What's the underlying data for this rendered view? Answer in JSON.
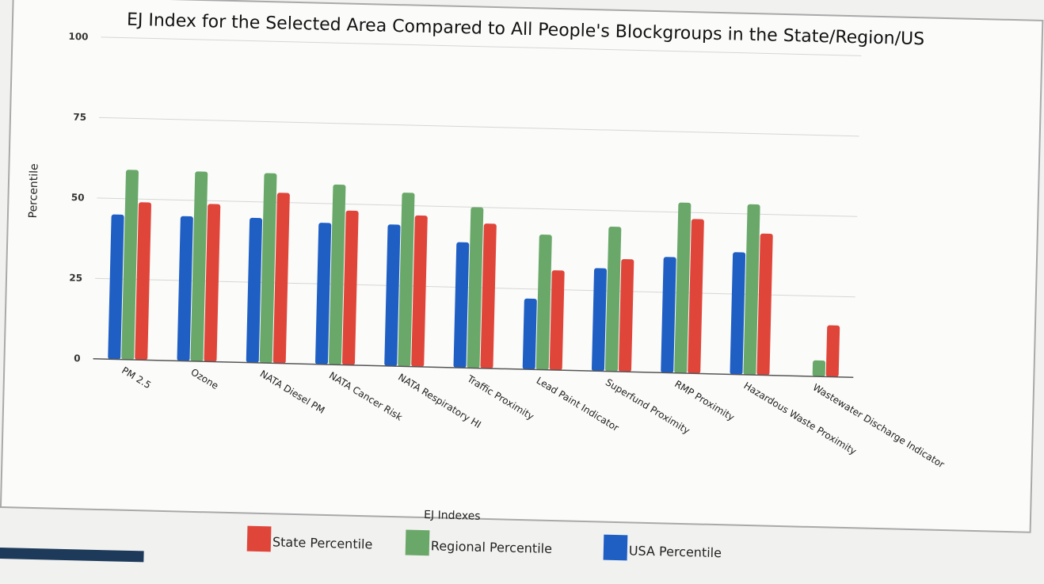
{
  "chart_data": {
    "type": "bar",
    "title": "EJ Index for the Selected Area Compared to All People's Blockgroups in the State/Region/US",
    "xlabel": "EJ Indexes",
    "ylabel": "Percentile",
    "ylim": [
      0,
      100
    ],
    "yticks": [
      "0",
      "25",
      "50",
      "75",
      "100"
    ],
    "grid": true,
    "legend_position": "bottom",
    "categories": [
      "PM 2.5",
      "Ozone",
      "NATA Diesel PM",
      "NATA Cancer Risk",
      "NATA Respiratory HI",
      "Traffic Proximity",
      "Lead Paint Indicator",
      "Superfund Proximity",
      "RMP Proximity",
      "Hazardous Waste Proximity",
      "Wastewater Discharge Indicator"
    ],
    "series": [
      {
        "name": "USA Percentile",
        "color": "#1f5fc4",
        "values": [
          45,
          45,
          45,
          44,
          44,
          39,
          22,
          32,
          36,
          38,
          0
        ]
      },
      {
        "name": "Regional Percentile",
        "color": "#6aa86a",
        "values": [
          59,
          59,
          59,
          56,
          54,
          50,
          42,
          45,
          53,
          53,
          5
        ]
      },
      {
        "name": "State Percentile",
        "color": "#e0453a",
        "values": [
          49,
          49,
          53,
          48,
          47,
          45,
          31,
          35,
          48,
          44,
          16
        ]
      }
    ],
    "legend_order": [
      "State Percentile",
      "Regional Percentile",
      "USA Percentile"
    ]
  }
}
